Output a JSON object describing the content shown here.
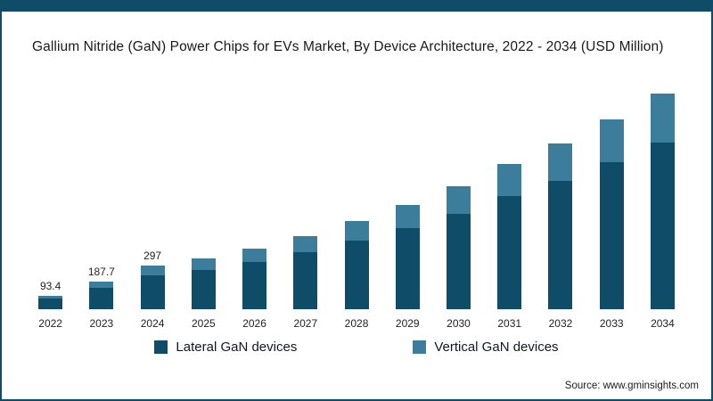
{
  "title": "Gallium Nitride (GaN) Power Chips for EVs Market, By Device Architecture, 2022 - 2034 (USD Million)",
  "source": "Source: www.gminsights.com",
  "colors": {
    "accent": "#0f4c67",
    "frame_border": "#0f4c67"
  },
  "chart_data": {
    "type": "bar",
    "stacked": true,
    "title": "Gallium Nitride (GaN) Power Chips for EVs Market, By Device Architecture, 2022 - 2034 (USD Million)",
    "categories": [
      "2022",
      "2023",
      "2024",
      "2025",
      "2026",
      "2027",
      "2028",
      "2029",
      "2030",
      "2031",
      "2032",
      "2033",
      "2034"
    ],
    "series": [
      {
        "name": "Lateral GaN devices",
        "color": "#0f4c67",
        "values": [
          72.4,
          145,
          230,
          263,
          318,
          384,
          461,
          546,
          643,
          760,
          864,
          992,
          1124
        ]
      },
      {
        "name": "Vertical GaN devices",
        "color": "#3d7d9c",
        "values": [
          21,
          42.7,
          67,
          77,
          92,
          111,
          134,
          159,
          187,
          220,
          251,
          288,
          326
        ]
      }
    ],
    "totals": [
      93.4,
      187.7,
      297,
      340,
      410,
      495,
      595,
      705,
      830,
      980,
      1115,
      1280,
      1450
    ],
    "data_labels": [
      "93.4",
      "187.7",
      "297",
      "",
      "",
      "",
      "",
      "",
      "",
      "",
      "",
      "",
      ""
    ],
    "xlabel": "",
    "ylabel": "",
    "ylim": [
      0,
      1500
    ],
    "grid": false,
    "legend_position": "bottom"
  }
}
